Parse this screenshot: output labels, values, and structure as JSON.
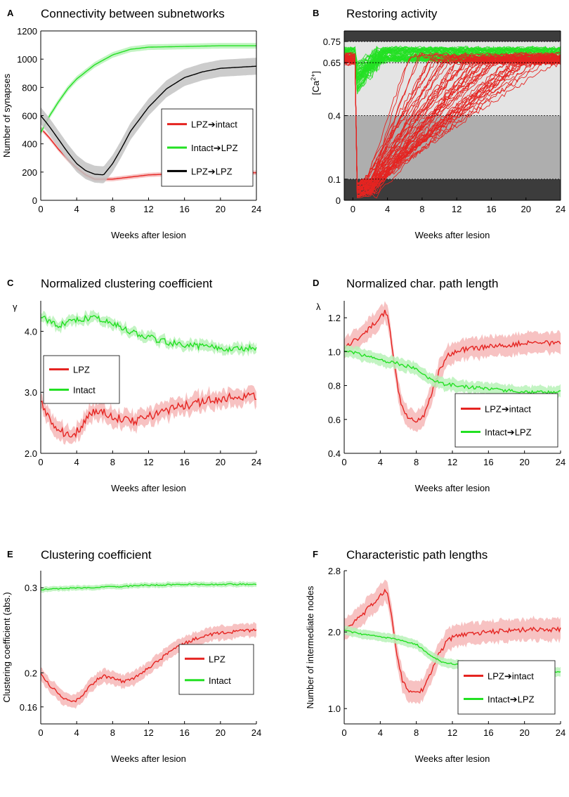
{
  "colors": {
    "lpz": "#e52421",
    "intact": "#23e023",
    "lpz_lpz": "#000000",
    "band_lpz": "#f6b7b7",
    "band_intact": "#b9f2b9",
    "band_black": "#c3c3c3",
    "dark": "#3c3c3c",
    "mid": "#aeaeae",
    "light": "#e4e4e4"
  },
  "chart_data": [
    {
      "id": "A",
      "letter": "A",
      "type": "line",
      "title": "Connectivity between subnetworks",
      "xlabel": "Weeks after lesion",
      "ylabel": "Number of synapses",
      "xlim": [
        0,
        24
      ],
      "ylim": [
        0,
        1200
      ],
      "xticks": [
        0,
        4,
        8,
        12,
        16,
        20,
        24
      ],
      "yticks": [
        0,
        200,
        400,
        600,
        800,
        1000,
        1200
      ],
      "legend": "center-right",
      "series": [
        {
          "name": "LPZ➔intact",
          "color": "lpz",
          "band": 15,
          "points": [
            [
              0,
              510
            ],
            [
              1,
              440
            ],
            [
              2,
              360
            ],
            [
              3,
              290
            ],
            [
              4,
              230
            ],
            [
              5,
              180
            ],
            [
              6,
              150
            ],
            [
              8,
              150
            ],
            [
              10,
              165
            ],
            [
              12,
              180
            ],
            [
              16,
              190
            ],
            [
              20,
              195
            ],
            [
              24,
              195
            ]
          ]
        },
        {
          "name": "Intact➔LPZ",
          "color": "intact",
          "band": 20,
          "points": [
            [
              0,
              480
            ],
            [
              1,
              600
            ],
            [
              2,
              700
            ],
            [
              3,
              790
            ],
            [
              4,
              860
            ],
            [
              6,
              960
            ],
            [
              8,
              1030
            ],
            [
              10,
              1070
            ],
            [
              12,
              1085
            ],
            [
              16,
              1090
            ],
            [
              20,
              1095
            ],
            [
              24,
              1095
            ]
          ]
        },
        {
          "name": "LPZ➔LPZ",
          "color": "lpz_lpz",
          "band": 60,
          "points": [
            [
              0,
              600
            ],
            [
              1,
              520
            ],
            [
              2,
              430
            ],
            [
              3,
              340
            ],
            [
              4,
              260
            ],
            [
              5,
              210
            ],
            [
              6,
              185
            ],
            [
              7,
              180
            ],
            [
              8,
              260
            ],
            [
              9,
              370
            ],
            [
              10,
              490
            ],
            [
              12,
              660
            ],
            [
              14,
              790
            ],
            [
              16,
              870
            ],
            [
              18,
              910
            ],
            [
              20,
              935
            ],
            [
              24,
              950
            ]
          ]
        }
      ]
    },
    {
      "id": "B",
      "letter": "B",
      "type": "line",
      "title": "Restoring activity",
      "xlabel": "Weeks after lesion",
      "ylabel": "[Ca2+]",
      "ylabel_main": "[Ca",
      "ylabel_sup": "2+",
      "ylabel_end": "]",
      "xlim": [
        -1,
        24
      ],
      "ylim": [
        0,
        0.8
      ],
      "xticks": [
        0,
        4,
        8,
        12,
        16,
        20,
        24
      ],
      "yticks": [
        0,
        0.1,
        0.4,
        0.65,
        0.75
      ],
      "ytick_labels": [
        "0",
        "0.1",
        "0.4",
        "0.65",
        "0.75"
      ],
      "zones": [
        [
          0,
          0.1,
          "dark"
        ],
        [
          0.1,
          0.4,
          "mid"
        ],
        [
          0.4,
          0.75,
          "light"
        ],
        [
          0.75,
          0.8,
          "dark"
        ]
      ],
      "dashed_levels": [
        0.1,
        0.4,
        0.65,
        0.75
      ],
      "traces": {
        "green_count": 60,
        "red_count": 55,
        "recovery_start_weeks": 0.8,
        "recovery_end_weeks": 24
      }
    },
    {
      "id": "C",
      "letter": "C",
      "type": "line",
      "title": "Normalized clustering coefficient",
      "xlabel": "Weeks after lesion",
      "ylabel": "γ",
      "xlim": [
        0,
        24
      ],
      "ylim": [
        2.0,
        4.5
      ],
      "xticks": [
        0,
        4,
        8,
        12,
        16,
        20,
        24
      ],
      "yticks": [
        2.0,
        3.0,
        4.0
      ],
      "ytick_labels": [
        "2.0",
        "3.0",
        "4.0"
      ],
      "legend": "center-left",
      "series": [
        {
          "name": "LPZ",
          "color": "lpz",
          "band": 0.14,
          "noise": 0.07,
          "points": [
            [
              0,
              2.88
            ],
            [
              1,
              2.55
            ],
            [
              2,
              2.38
            ],
            [
              3,
              2.3
            ],
            [
              4,
              2.35
            ],
            [
              5,
              2.55
            ],
            [
              6,
              2.7
            ],
            [
              7,
              2.68
            ],
            [
              8,
              2.62
            ],
            [
              9,
              2.55
            ],
            [
              10,
              2.52
            ],
            [
              12,
              2.6
            ],
            [
              14,
              2.7
            ],
            [
              16,
              2.78
            ],
            [
              18,
              2.85
            ],
            [
              20,
              2.9
            ],
            [
              24,
              2.95
            ]
          ]
        },
        {
          "name": "Intact",
          "color": "intact",
          "band": 0.08,
          "noise": 0.05,
          "points": [
            [
              0,
              4.25
            ],
            [
              1,
              4.15
            ],
            [
              2,
              4.1
            ],
            [
              3,
              4.15
            ],
            [
              4,
              4.2
            ],
            [
              6,
              4.22
            ],
            [
              8,
              4.12
            ],
            [
              10,
              4.0
            ],
            [
              12,
              3.9
            ],
            [
              14,
              3.82
            ],
            [
              16,
              3.78
            ],
            [
              20,
              3.72
            ],
            [
              24,
              3.72
            ]
          ]
        }
      ]
    },
    {
      "id": "D",
      "letter": "D",
      "type": "line",
      "title": "Normalized char. path length",
      "xlabel": "Weeks after lesion",
      "ylabel": "λ",
      "xlim": [
        0,
        24
      ],
      "ylim": [
        0.4,
        1.3
      ],
      "xticks": [
        0,
        4,
        8,
        12,
        16,
        20,
        24
      ],
      "yticks": [
        0.4,
        0.6,
        0.8,
        1.0,
        1.2
      ],
      "ytick_labels": [
        "0.4",
        "0.6",
        "0.8",
        "1.0",
        "1.2"
      ],
      "legend": "bottom-right",
      "series": [
        {
          "name": "LPZ➔intact",
          "color": "lpz",
          "band": 0.06,
          "noise": 0.015,
          "points": [
            [
              0,
              1.02
            ],
            [
              1,
              1.06
            ],
            [
              2,
              1.1
            ],
            [
              3,
              1.15
            ],
            [
              4,
              1.2
            ],
            [
              4.6,
              1.24
            ],
            [
              5,
              1.16
            ],
            [
              5.5,
              0.95
            ],
            [
              6,
              0.76
            ],
            [
              6.5,
              0.66
            ],
            [
              7,
              0.61
            ],
            [
              8,
              0.59
            ],
            [
              8.8,
              0.62
            ],
            [
              9.5,
              0.72
            ],
            [
              10.5,
              0.88
            ],
            [
              11.5,
              0.98
            ],
            [
              13,
              1.01
            ],
            [
              16,
              1.03
            ],
            [
              20,
              1.05
            ],
            [
              24,
              1.05
            ]
          ]
        },
        {
          "name": "Intact➔LPZ",
          "color": "intact",
          "band": 0.035,
          "noise": 0.01,
          "points": [
            [
              0,
              1.01
            ],
            [
              2,
              0.98
            ],
            [
              4,
              0.95
            ],
            [
              6,
              0.93
            ],
            [
              8,
              0.9
            ],
            [
              9.5,
              0.84
            ],
            [
              11,
              0.81
            ],
            [
              14,
              0.79
            ],
            [
              18,
              0.77
            ],
            [
              20,
              0.76
            ],
            [
              24,
              0.76
            ]
          ]
        }
      ]
    },
    {
      "id": "E",
      "letter": "E",
      "type": "line",
      "title": "Clustering coefficient",
      "xlabel": "Weeks after lesion",
      "ylabel": "Clustering coefficient (abs.)",
      "xlim": [
        0,
        24
      ],
      "ylim": [
        0.14,
        0.32
      ],
      "xticks": [
        0,
        4,
        8,
        12,
        16,
        20,
        24
      ],
      "yticks": [
        0.16,
        0.2,
        0.3
      ],
      "ytick_labels": [
        "0.16",
        "0.2",
        "0.3"
      ],
      "legend": "bottom-right",
      "series": [
        {
          "name": "LPZ",
          "color": "lpz",
          "band": 0.008,
          "noise": 0.002,
          "points": [
            [
              0,
              0.2
            ],
            [
              1,
              0.185
            ],
            [
              2,
              0.175
            ],
            [
              3,
              0.168
            ],
            [
              4,
              0.168
            ],
            [
              5,
              0.178
            ],
            [
              6,
              0.19
            ],
            [
              7,
              0.196
            ],
            [
              8,
              0.195
            ],
            [
              9,
              0.19
            ],
            [
              10,
              0.192
            ],
            [
              12,
              0.205
            ],
            [
              14,
              0.222
            ],
            [
              16,
              0.235
            ],
            [
              18,
              0.243
            ],
            [
              20,
              0.247
            ],
            [
              22,
              0.249
            ],
            [
              24,
              0.25
            ]
          ]
        },
        {
          "name": "Intact",
          "color": "intact",
          "band": 0.003,
          "noise": 0.0008,
          "points": [
            [
              0,
              0.298
            ],
            [
              4,
              0.3
            ],
            [
              8,
              0.301
            ],
            [
              12,
              0.303
            ],
            [
              16,
              0.304
            ],
            [
              20,
              0.304
            ],
            [
              24,
              0.304
            ]
          ]
        }
      ]
    },
    {
      "id": "F",
      "letter": "F",
      "type": "line",
      "title": "Characteristic path lengths",
      "xlabel": "Weeks after lesion",
      "ylabel": "Number of intermediate nodes",
      "xlim": [
        0,
        24
      ],
      "ylim": [
        0.8,
        2.8
      ],
      "xticks": [
        0,
        4,
        8,
        12,
        16,
        20,
        24
      ],
      "yticks": [
        1.0,
        2.0,
        2.8
      ],
      "ytick_labels": [
        "1.0",
        "2.0",
        "2.8"
      ],
      "legend": "bottom-right",
      "series": [
        {
          "name": "LPZ➔intact",
          "color": "lpz",
          "band": 0.14,
          "noise": 0.03,
          "points": [
            [
              0,
              2.05
            ],
            [
              1,
              2.12
            ],
            [
              2,
              2.22
            ],
            [
              3,
              2.35
            ],
            [
              4,
              2.48
            ],
            [
              4.7,
              2.55
            ],
            [
              5,
              2.42
            ],
            [
              5.5,
              2.0
            ],
            [
              6,
              1.6
            ],
            [
              6.5,
              1.35
            ],
            [
              7,
              1.25
            ],
            [
              8,
              1.2
            ],
            [
              8.8,
              1.25
            ],
            [
              9.5,
              1.45
            ],
            [
              10.5,
              1.7
            ],
            [
              11.5,
              1.9
            ],
            [
              13,
              1.97
            ],
            [
              16,
              2.0
            ],
            [
              20,
              2.03
            ],
            [
              24,
              2.03
            ]
          ]
        },
        {
          "name": "Intact➔LPZ",
          "color": "intact",
          "band": 0.06,
          "noise": 0.01,
          "points": [
            [
              0,
              2.02
            ],
            [
              2,
              1.97
            ],
            [
              4,
              1.94
            ],
            [
              6,
              1.9
            ],
            [
              8,
              1.84
            ],
            [
              9.5,
              1.7
            ],
            [
              11,
              1.6
            ],
            [
              14,
              1.55
            ],
            [
              18,
              1.5
            ],
            [
              20,
              1.48
            ],
            [
              24,
              1.48
            ]
          ]
        }
      ]
    }
  ]
}
